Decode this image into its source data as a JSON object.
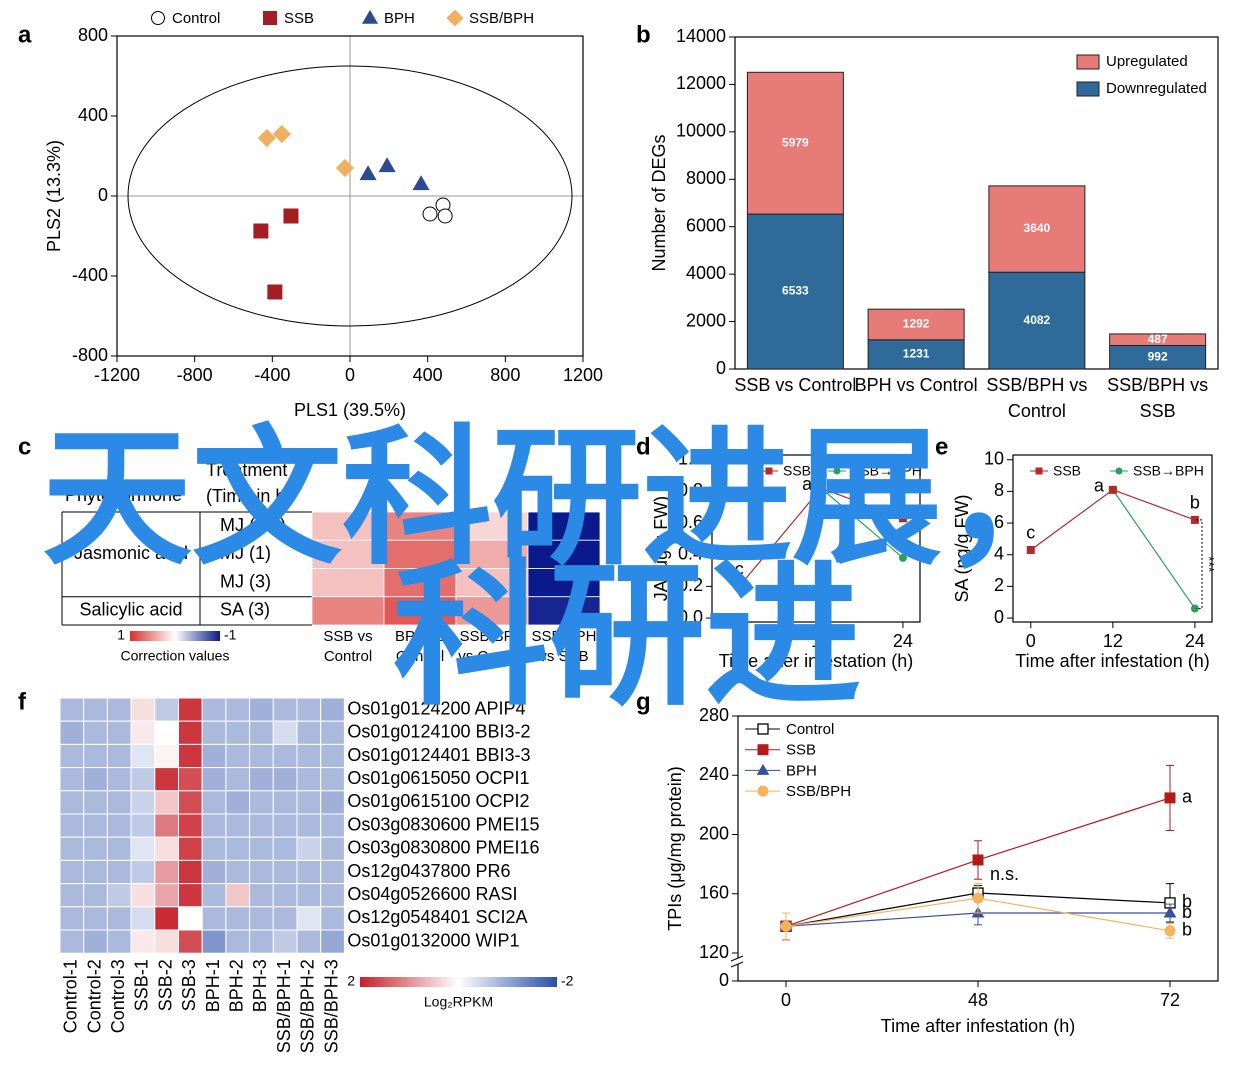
{
  "chart_data": [
    {
      "type": "scatter",
      "label": "a",
      "xlabel": "PLS1 (39.5%)",
      "ylabel": "PLS2 (13.3%)",
      "xlim": [
        -1200,
        1200
      ],
      "xticks": [
        -1200,
        -800,
        -400,
        0,
        400,
        800,
        1200
      ],
      "ylim": [
        -800,
        800
      ],
      "yticks": [
        -800,
        -400,
        0,
        400,
        800
      ],
      "series": [
        {
          "name": "Control",
          "marker": "circle",
          "color": "#ffffff",
          "x": [
            479,
            412,
            490
          ],
          "y": [
            -45,
            -90,
            -100
          ]
        },
        {
          "name": "SSB",
          "marker": "square",
          "color": "#a31f24",
          "x": [
            -304,
            -459,
            -387
          ],
          "y": [
            -100,
            -175,
            -480
          ]
        },
        {
          "name": "BPH",
          "marker": "triangle",
          "color": "#2e4a8f",
          "x": [
            93,
            191,
            366
          ],
          "y": [
            110,
            150,
            60
          ]
        },
        {
          "name": "SSB/BPH",
          "marker": "diamond",
          "color": "#f0b060",
          "x": [
            -428,
            -351,
            -26
          ],
          "y": [
            290,
            310,
            140
          ]
        }
      ]
    },
    {
      "type": "stacked_bar",
      "label": "b",
      "ylabel": "Number of DEGs",
      "categories": [
        "SSB vs Control",
        "BPH vs Control",
        "SSB/BPH vs Control",
        "SSB/BPH vs SSB"
      ],
      "ylim": [
        0,
        14000
      ],
      "yticks": [
        0,
        2000,
        4000,
        6000,
        8000,
        10000,
        12000,
        14000
      ],
      "legend": "upper right",
      "series": [
        {
          "name": "Downregulated",
          "color": "#2f6b9a",
          "values": [
            6533,
            1231,
            4082,
            992
          ]
        },
        {
          "name": "Upregulated",
          "color": "#e77b78",
          "values": [
            5979,
            1292,
            3640,
            487
          ]
        }
      ]
    },
    {
      "type": "heatmap_table",
      "label": "c",
      "header": [
        "Phytohormone",
        "Treatment (Time in h)"
      ],
      "columns": [
        "SSB vs Control",
        "BPH vs Control",
        "SSB/BPH vs Control",
        "SSB/BPH vs SSB"
      ],
      "row_groups": [
        {
          "name": "Jasmonic acid",
          "rows": [
            "MJ (0.5)",
            "MJ (1)",
            "MJ (3)"
          ],
          "values": [
            [
              0.3,
              0.6,
              0.2,
              -1
            ],
            [
              0.3,
              0.7,
              0.4,
              -1
            ],
            [
              0.3,
              0.7,
              0.3,
              -1
            ]
          ]
        },
        {
          "name": "Salicylic acid",
          "rows": [
            "SA (3)"
          ],
          "values": [
            [
              0.6,
              0.8,
              0.5,
              -0.95
            ]
          ]
        }
      ],
      "clim": [
        1,
        -1
      ],
      "colorbar_ticks": [
        1,
        -1
      ],
      "colorbar_label": "Correction values",
      "colors": [
        "#d9302c",
        "#ffffff",
        "#0a1a8c"
      ]
    },
    {
      "type": "line",
      "label": "d",
      "ylabel": "JA (μg/g FW)",
      "xlabel": "Time after infestation (h)",
      "x": [
        0,
        12,
        24
      ],
      "xlim": [
        -4,
        26.5
      ],
      "xticks": [
        0,
        12,
        24
      ],
      "ylim": [
        -0.025,
        1.03
      ],
      "yticks": [
        {
          "value": 0,
          "label": "0.0"
        },
        0.2,
        0.4,
        0.6,
        0.8,
        {
          "value": 1,
          "label": "1.0"
        }
      ],
      "series": [
        {
          "name": "SSB",
          "color": "#b22a2a",
          "marker": "square",
          "values": [
            0.2,
            0.82,
            0.63
          ],
          "point_labels": [
            "c",
            "a",
            null
          ]
        },
        {
          "name": "SSB→BPH",
          "color": "#2ca05a",
          "marker": "circle",
          "values": [
            null,
            0.82,
            0.38
          ]
        }
      ]
    },
    {
      "type": "line",
      "label": "e",
      "ylabel": "SA (ng/g FW)",
      "xlabel": "Time after infestation (h)",
      "x": [
        0,
        12,
        24
      ],
      "xlim": [
        -2.6,
        26.5
      ],
      "xticks": [
        0,
        12,
        24
      ],
      "ylim": [
        -0.25,
        10.3
      ],
      "yticks": [
        0,
        2,
        4,
        6,
        8,
        10
      ],
      "series": [
        {
          "name": "SSB",
          "color": "#b22a2a",
          "marker": "square",
          "values": [
            4.3,
            8.1,
            6.2
          ],
          "point_labels": [
            "c",
            "a",
            "b"
          ]
        },
        {
          "name": "SSB→BPH",
          "color": "#2ca05a",
          "marker": "circle",
          "values": [
            null,
            8.1,
            0.6
          ]
        }
      ],
      "annotations": [
        "***"
      ]
    },
    {
      "type": "heatmap",
      "label": "f",
      "rows": [
        "Os01g0124200 APIP4",
        "Os01g0124100 BBI3-2",
        "Os01g0124401 BBI3-3",
        "Os01g0615050 OCPI1",
        "Os01g0615100 OCPI2",
        "Os03g0830600 PMEI15",
        "Os03g0830800 PMEI16",
        "Os12g0437800 PR6",
        "Os04g0526600 RASI",
        "Os12g0548401 SCI2A",
        "Os01g0132000 WIP1"
      ],
      "columns": [
        "Control-1",
        "Control-2",
        "Control-3",
        "SSB-1",
        "SSB-2",
        "SSB-3",
        "BPH-1",
        "BPH-2",
        "BPH-3",
        "SSB/BPH-1",
        "SSB/BPH-2",
        "SSB/BPH-3"
      ],
      "values": [
        [
          -0.8,
          -0.8,
          -0.8,
          0.3,
          -0.6,
          1.8,
          -0.8,
          -0.8,
          -0.9,
          -0.8,
          -0.8,
          -0.9
        ],
        [
          -0.9,
          -0.8,
          -0.8,
          0.2,
          0.0,
          1.8,
          -0.8,
          -0.8,
          -0.8,
          -0.4,
          -0.8,
          -0.8
        ],
        [
          -0.8,
          -0.8,
          -0.8,
          -0.3,
          0.1,
          1.8,
          -0.9,
          -0.8,
          -0.8,
          -0.8,
          -0.8,
          -0.8
        ],
        [
          -0.8,
          -0.9,
          -0.8,
          -0.6,
          1.8,
          1.6,
          -0.9,
          -0.8,
          -0.9,
          -0.9,
          -0.8,
          -0.8
        ],
        [
          -0.8,
          -0.8,
          -0.8,
          -0.5,
          0.5,
          1.6,
          -0.8,
          -0.9,
          -0.8,
          -0.8,
          -0.8,
          -0.9
        ],
        [
          -0.8,
          -0.8,
          -0.8,
          -0.6,
          1.2,
          1.7,
          -0.8,
          -0.8,
          -0.8,
          -0.8,
          -0.8,
          -0.8
        ],
        [
          -0.8,
          -0.8,
          -0.8,
          -0.3,
          0.3,
          1.7,
          -0.8,
          -0.8,
          -0.8,
          -0.8,
          -0.5,
          -0.8
        ],
        [
          -0.8,
          -0.8,
          -0.8,
          -0.6,
          0.9,
          1.8,
          -0.9,
          -0.8,
          -0.8,
          -0.8,
          -0.8,
          -0.8
        ],
        [
          -0.8,
          -0.8,
          -0.6,
          0.3,
          0.8,
          1.8,
          -0.8,
          0.5,
          -0.8,
          -0.8,
          -0.8,
          -0.8
        ],
        [
          -0.8,
          -0.8,
          -0.8,
          -0.4,
          1.9,
          0.0,
          -0.8,
          -0.8,
          -0.8,
          -0.8,
          -0.3,
          -0.8
        ],
        [
          -0.8,
          -0.9,
          -0.8,
          0.2,
          0.3,
          1.6,
          -1.2,
          -0.8,
          -0.8,
          -0.6,
          -0.8,
          -1.0
        ]
      ],
      "clim": [
        2,
        -2
      ],
      "colorbar_ticks": [
        2,
        -2
      ],
      "colorbar_label": "Log₂RPKM",
      "colors": [
        "#c8202a",
        "#ffffff",
        "#2b4fa8"
      ]
    },
    {
      "type": "errorbar_line",
      "label": "g",
      "ylabel": "TPIs (μg/mg protein)",
      "xlabel": "Time after infestation (h)",
      "categories": [
        0,
        48,
        72
      ],
      "ylim": [
        0,
        280
      ],
      "yticks": [
        0,
        120,
        160,
        200,
        240,
        280
      ],
      "axis_break": [
        0,
        120
      ],
      "legend": "upper left",
      "series": [
        {
          "name": "Control",
          "color": "#000000",
          "marker": "square_open",
          "values": [
            138,
            160.5,
            153.8
          ],
          "errors": [
            9,
            5,
            13
          ],
          "point_labels": [
            null,
            null,
            "b"
          ]
        },
        {
          "name": "SSB",
          "color": "#b31b1b",
          "marker": "square",
          "values": [
            138,
            182.8,
            224.7
          ],
          "errors": [
            9,
            13,
            22
          ],
          "point_labels": [
            null,
            null,
            "a"
          ]
        },
        {
          "name": "BPH",
          "color": "#3a4fa0",
          "marker": "triangle",
          "values": [
            138,
            147,
            147
          ],
          "errors": [
            9,
            8,
            6
          ],
          "point_labels": [
            null,
            null,
            "b"
          ]
        },
        {
          "name": "SSB/BPH",
          "color": "#f5b35c",
          "marker": "circle",
          "values": [
            138,
            157,
            135
          ],
          "errors": [
            9,
            10,
            5
          ],
          "point_labels": [
            null,
            null,
            "b"
          ]
        }
      ],
      "annotations": [
        "n.s."
      ]
    }
  ],
  "watermark": [
    "天文科研进展，",
    "科研进"
  ]
}
